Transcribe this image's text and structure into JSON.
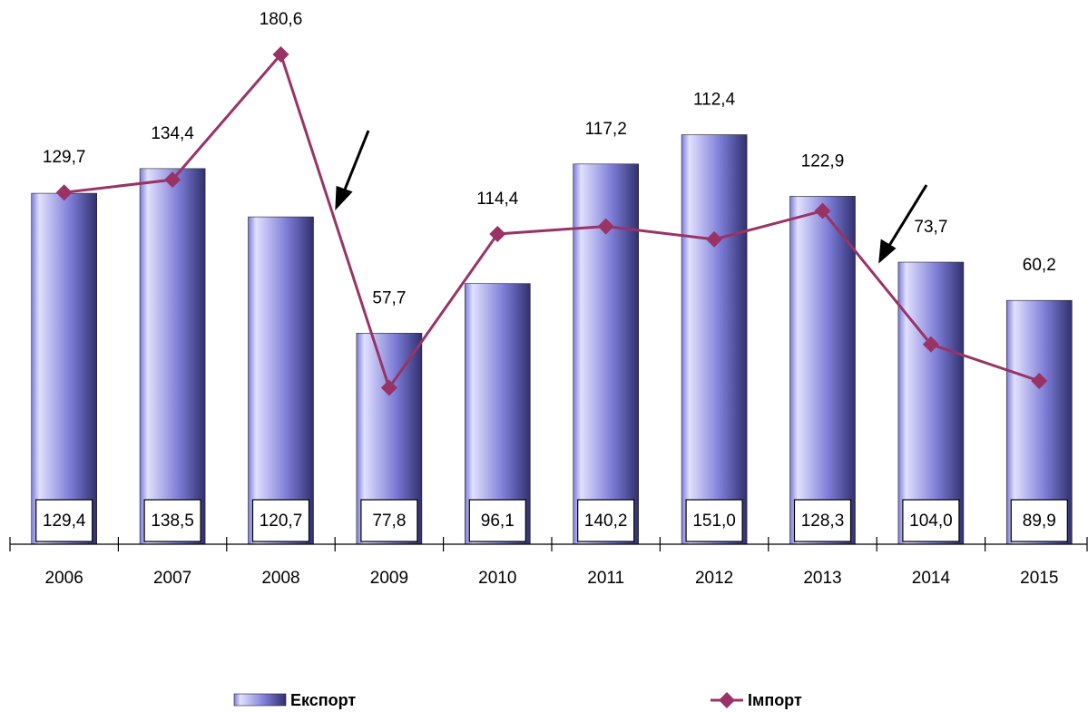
{
  "chart_data": {
    "type": "bar-line",
    "categories": [
      "2006",
      "2007",
      "2008",
      "2009",
      "2010",
      "2011",
      "2012",
      "2013",
      "2014",
      "2015"
    ],
    "series": [
      {
        "name": "Експорт",
        "type": "bar",
        "color": "#7b7bd6",
        "values": [
          129.4,
          138.5,
          120.7,
          77.8,
          96.1,
          140.2,
          151.0,
          128.3,
          104.0,
          89.9
        ],
        "value_labels": [
          "129,4",
          "138,5",
          "120,7",
          "77,8",
          "96,1",
          "140,2",
          "151,0",
          "128,3",
          "104,0",
          "89,9"
        ]
      },
      {
        "name": "Імпорт",
        "type": "line",
        "color": "#993366",
        "values": [
          129.7,
          134.4,
          180.6,
          57.7,
          114.4,
          117.2,
          112.4,
          122.9,
          73.7,
          60.2
        ],
        "value_labels": [
          "129,7",
          "134,4",
          "180,6",
          "57,7",
          "114,4",
          "117,2",
          "112,4",
          "122,9",
          "73,7",
          "60,2"
        ]
      }
    ],
    "ylim": [
      0,
      200
    ],
    "legend": "bottom"
  }
}
